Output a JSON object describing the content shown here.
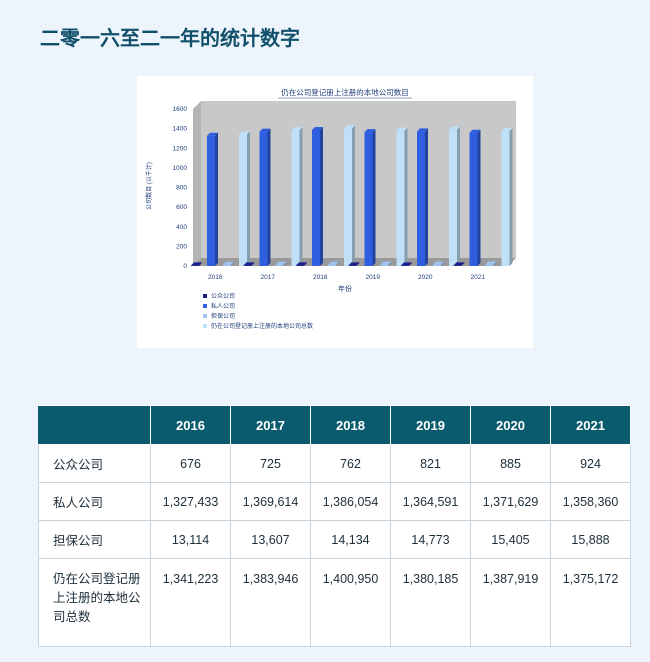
{
  "page": {
    "title": "二零一六至二一年的统计数字"
  },
  "colors": {
    "public": "#1b1f8c",
    "private": "#2f5fe0",
    "guarantee": "#9fc3f0",
    "total": "#bfe0f7",
    "plot_background": "#c8c8c8",
    "header_background": "#0b5b6e"
  },
  "chart_data": {
    "type": "bar",
    "title": "仍在公司登记册上注册的本地公司数目",
    "xlabel": "年份",
    "ylabel": "公司数目 (以千计)",
    "ylim": [
      0,
      1600
    ],
    "yticks": [
      "0",
      "200",
      "400",
      "600",
      "800",
      "1000",
      "1200",
      "1400",
      "1600"
    ],
    "categories": [
      "2016",
      "2017",
      "2018",
      "2019",
      "2020",
      "2021"
    ],
    "grid": false,
    "legend_placement": "bottom-left",
    "series": [
      {
        "name": "公众公司",
        "color": "#1b1f8c",
        "values": [
          0.676,
          0.725,
          0.762,
          0.821,
          0.885,
          0.924
        ]
      },
      {
        "name": "私人公司",
        "color": "#2f5fe0",
        "values": [
          1327.4,
          1369.6,
          1386.1,
          1364.6,
          1371.6,
          1358.4
        ]
      },
      {
        "name": "担保公司",
        "color": "#9fc3f0",
        "values": [
          13.1,
          13.6,
          14.1,
          14.8,
          15.4,
          15.9
        ]
      },
      {
        "name": "仍在公司登记册上注册的本地公司总数",
        "color": "#bfe0f7",
        "values": [
          1341.2,
          1383.9,
          1401.0,
          1380.2,
          1387.9,
          1375.2
        ]
      }
    ]
  },
  "table": {
    "headers": [
      "",
      "2016",
      "2017",
      "2018",
      "2019",
      "2020",
      "2021"
    ],
    "rows": [
      {
        "label": "公众公司",
        "values": [
          "676",
          "725",
          "762",
          "821",
          "885",
          "924"
        ]
      },
      {
        "label": "私人公司",
        "values": [
          "1,327,433",
          "1,369,614",
          "1,386,054",
          "1,364,591",
          "1,371,629",
          "1,358,360"
        ]
      },
      {
        "label": "担保公司",
        "values": [
          "13,114",
          "13,607",
          "14,134",
          "14,773",
          "15,405",
          "15,888"
        ]
      },
      {
        "label": "仍在公司登记册上注册的本地公司总数",
        "values": [
          "1,341,223",
          "1,383,946",
          "1,400,950",
          "1,380,185",
          "1,387,919",
          "1,375,172"
        ]
      }
    ]
  }
}
